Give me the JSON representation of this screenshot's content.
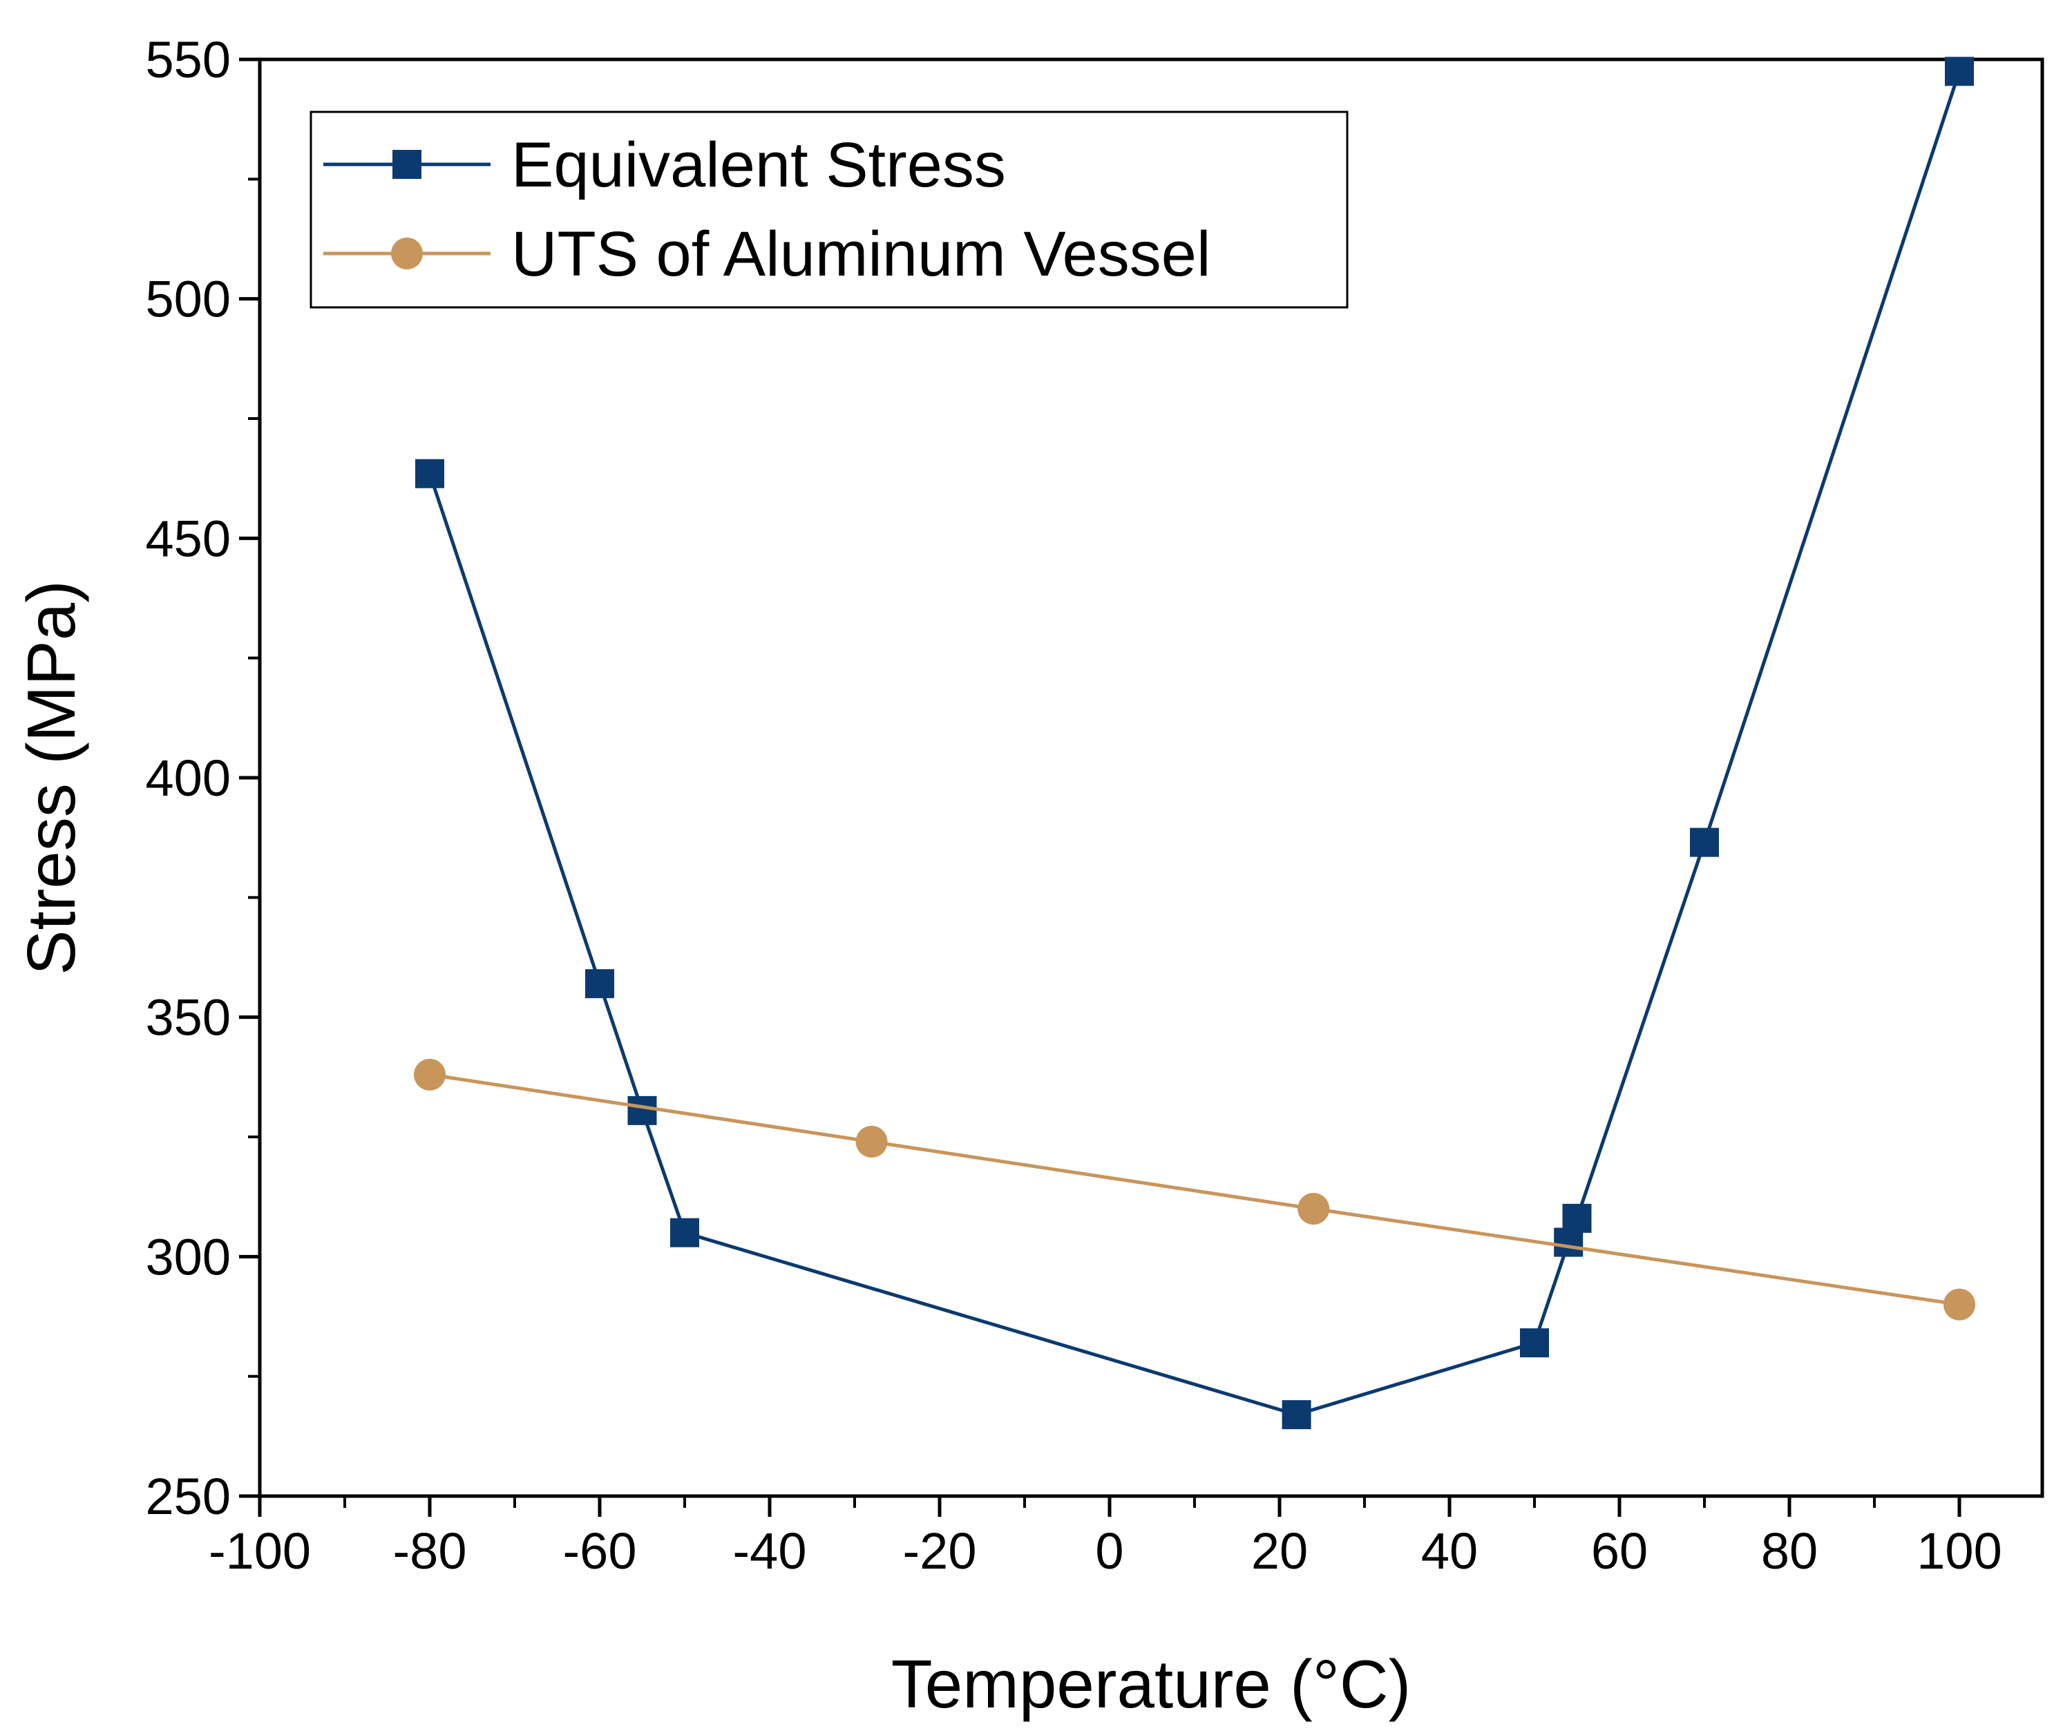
{
  "chart_data": {
    "type": "line",
    "title": "",
    "xlabel": "Temperature (°C)",
    "ylabel": "Stress (MPa)",
    "xlim": [
      -100,
      105
    ],
    "ylim": [
      250,
      550
    ],
    "xticks": [
      -100,
      -80,
      -60,
      -40,
      -20,
      0,
      20,
      40,
      60,
      80,
      100
    ],
    "yticks": [
      250,
      300,
      350,
      400,
      450,
      500,
      550
    ],
    "x_tick_labels": [
      "-100",
      "-80",
      "-60",
      "-40",
      "-20",
      "0",
      "20",
      "40",
      "60",
      "80",
      "100"
    ],
    "y_tick_labels": [
      "250",
      "300",
      "350",
      "400",
      "450",
      "500",
      "550"
    ],
    "grid": false,
    "legend_position": "top-left",
    "series": [
      {
        "name": "Equivalent Stress",
        "marker": "square",
        "color": "#0b3a6e",
        "x": [
          -80,
          -60,
          -55,
          -50,
          22,
          50,
          54,
          55,
          70,
          100
        ],
        "y": [
          463.5,
          357,
          330.5,
          305,
          267,
          282,
          303,
          308,
          386.5,
          547.5
        ]
      },
      {
        "name": "UTS of Aluminum Vessel",
        "marker": "circle",
        "color": "#c8955a",
        "x": [
          -80,
          -28,
          24,
          100
        ],
        "y": [
          338,
          324,
          310,
          290
        ]
      }
    ]
  }
}
